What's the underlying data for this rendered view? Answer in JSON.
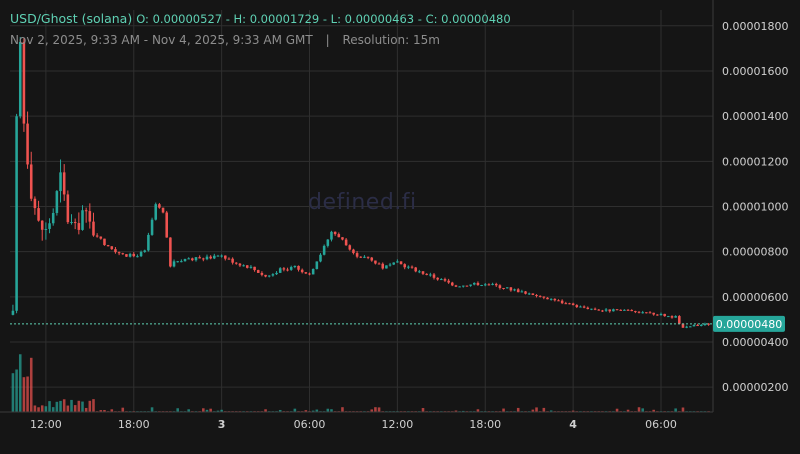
{
  "header": {
    "pair": "USD/Ghost (solana)",
    "ohlc_text": "O: 0.00000527 - H: 0.00001729 - L: 0.00000463 - C: 0.00000480",
    "range": "Nov 2, 2025, 9:33 AM - Nov 4, 2025, 9:33 AM GMT",
    "separator": "|",
    "resolution": "Resolution: 15m"
  },
  "watermark": "defined.fi",
  "colors": {
    "up": "#26a69a",
    "up_bright": "#5fd1b4",
    "down": "#ef5350",
    "grid": "#2f2f2f",
    "background": "#151515",
    "last_price_tag": "#26a69a"
  },
  "chart_data": {
    "type": "candlestick",
    "y_axis": {
      "ticks": [
        "0.00001800",
        "0.00001600",
        "0.00001400",
        "0.00001200",
        "0.00001000",
        "0.00000800",
        "0.00000600",
        "0.00000400",
        "0.00000200"
      ],
      "tick_values": [
        1.8e-05,
        1.6e-05,
        1.4e-05,
        1.2e-05,
        1e-05,
        8e-06,
        6e-06,
        4e-06,
        2e-06
      ],
      "range": [
        9e-07,
        1.87e-05
      ]
    },
    "x_axis": {
      "range": [
        "2025-11-02T09:33",
        "2025-11-04T09:33"
      ],
      "ticks": [
        {
          "label": "12:00",
          "time": "2025-11-02T12:00",
          "bold": false
        },
        {
          "label": "18:00",
          "time": "2025-11-02T18:00",
          "bold": false
        },
        {
          "label": "3",
          "time": "2025-11-03T00:00",
          "bold": true
        },
        {
          "label": "06:00",
          "time": "2025-11-03T06:00",
          "bold": false
        },
        {
          "label": "12:00",
          "time": "2025-11-03T12:00",
          "bold": false
        },
        {
          "label": "18:00",
          "time": "2025-11-03T18:00",
          "bold": false
        },
        {
          "label": "4",
          "time": "2025-11-04T00:00",
          "bold": true
        },
        {
          "label": "06:00",
          "time": "2025-11-04T06:00",
          "bold": false
        }
      ]
    },
    "last_price": {
      "label": "0.00000480",
      "value": 4.8e-06
    },
    "grid": true,
    "anchors": [
      {
        "time": "2025-11-02T09:45",
        "price": 5.2e-06
      },
      {
        "time": "2025-11-02T10:00",
        "price": 1.35e-05
      },
      {
        "time": "2025-11-02T10:15",
        "price": 1.71e-05
      },
      {
        "time": "2025-11-02T10:30",
        "price": 1.38e-05
      },
      {
        "time": "2025-11-02T11:00",
        "price": 1.08e-05
      },
      {
        "time": "2025-11-02T11:30",
        "price": 9.2e-06
      },
      {
        "time": "2025-11-02T12:00",
        "price": 8.9e-06
      },
      {
        "time": "2025-11-02T12:30",
        "price": 9.8e-06
      },
      {
        "time": "2025-11-02T13:00",
        "price": 1.12e-05
      },
      {
        "time": "2025-11-02T13:30",
        "price": 9.5e-06
      },
      {
        "time": "2025-11-02T14:00",
        "price": 8.9e-06
      },
      {
        "time": "2025-11-02T14:30",
        "price": 9.8e-06
      },
      {
        "time": "2025-11-02T15:00",
        "price": 9.2e-06
      },
      {
        "time": "2025-11-02T16:00",
        "price": 8.3e-06
      },
      {
        "time": "2025-11-02T17:00",
        "price": 7.9e-06
      },
      {
        "time": "2025-11-02T18:00",
        "price": 7.8e-06
      },
      {
        "time": "2025-11-02T18:45",
        "price": 8e-06
      },
      {
        "time": "2025-11-02T19:30",
        "price": 1.01e-05
      },
      {
        "time": "2025-11-02T20:00",
        "price": 9.7e-06
      },
      {
        "time": "2025-11-02T20:30",
        "price": 7.4e-06
      },
      {
        "time": "2025-11-02T21:00",
        "price": 7.6e-06
      },
      {
        "time": "2025-11-03T00:00",
        "price": 7.8e-06
      },
      {
        "time": "2025-11-03T01:00",
        "price": 7.5e-06
      },
      {
        "time": "2025-11-03T02:00",
        "price": 7.3e-06
      },
      {
        "time": "2025-11-03T03:00",
        "price": 6.9e-06
      },
      {
        "time": "2025-11-03T04:00",
        "price": 7.2e-06
      },
      {
        "time": "2025-11-03T05:00",
        "price": 7.3e-06
      },
      {
        "time": "2025-11-03T06:00",
        "price": 7e-06
      },
      {
        "time": "2025-11-03T07:00",
        "price": 8.2e-06
      },
      {
        "time": "2025-11-03T07:30",
        "price": 8.9e-06
      },
      {
        "time": "2025-11-03T08:00",
        "price": 8.7e-06
      },
      {
        "time": "2025-11-03T09:00",
        "price": 7.9e-06
      },
      {
        "time": "2025-11-03T10:00",
        "price": 7.7e-06
      },
      {
        "time": "2025-11-03T11:00",
        "price": 7.3e-06
      },
      {
        "time": "2025-11-03T12:00",
        "price": 7.5e-06
      },
      {
        "time": "2025-11-03T14:00",
        "price": 7e-06
      },
      {
        "time": "2025-11-03T16:00",
        "price": 6.5e-06
      },
      {
        "time": "2025-11-03T18:00",
        "price": 6.6e-06
      },
      {
        "time": "2025-11-03T20:00",
        "price": 6.3e-06
      },
      {
        "time": "2025-11-03T22:00",
        "price": 6e-06
      },
      {
        "time": "2025-11-04T00:00",
        "price": 5.6e-06
      },
      {
        "time": "2025-11-04T02:00",
        "price": 5.4e-06
      },
      {
        "time": "2025-11-04T04:00",
        "price": 5.4e-06
      },
      {
        "time": "2025-11-04T06:00",
        "price": 5.2e-06
      },
      {
        "time": "2025-11-04T07:00",
        "price": 5.1e-06
      },
      {
        "time": "2025-11-04T07:30",
        "price": 4.6e-06
      },
      {
        "time": "2025-11-04T08:00",
        "price": 4.7e-06
      },
      {
        "time": "2025-11-04T09:15",
        "price": 4.8e-06
      }
    ]
  }
}
